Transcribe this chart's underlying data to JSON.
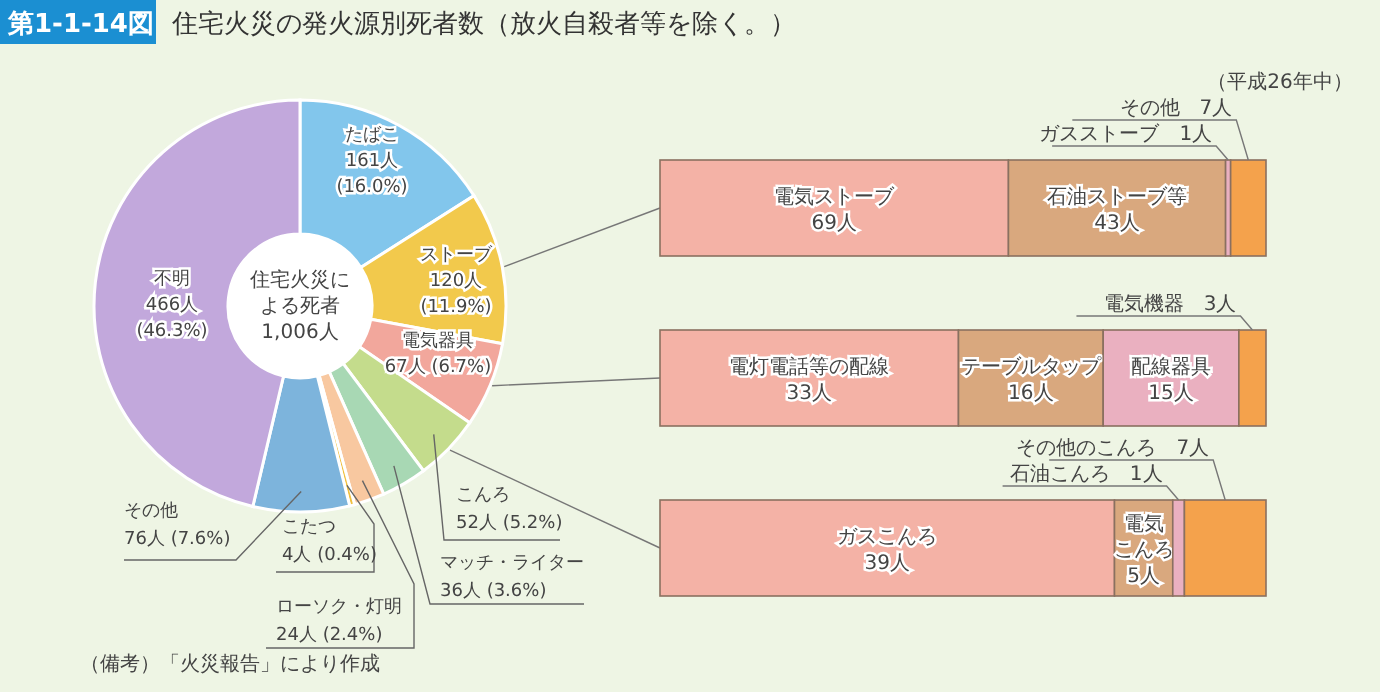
{
  "chart_data": [
    {
      "type": "donut",
      "title": "第1-1-14図 住宅火災の発火源別死者数（放火自殺者等を除く。）",
      "categories": [
        "たばこ",
        "ストーブ",
        "電気器具",
        "こんろ",
        "マッチ・ライター",
        "ローソク・灯明",
        "こたつ",
        "その他",
        "不明"
      ],
      "values": [
        161,
        120,
        67,
        52,
        36,
        24,
        4,
        76,
        466
      ],
      "colors": [
        "#82c6ec",
        "#f2c94c",
        "#f2a79c",
        "#c4dc8c",
        "#a8d8b4",
        "#f8c8a0",
        "#f0c040",
        "#7db4dc",
        "#c2a8dc"
      ],
      "value_labels": [
        "161人 (16.0%)",
        "120人 (11.9%)",
        "67人 (6.7%)",
        "52人 (5.2%)",
        "36人 (3.6%)",
        "24人 (2.4%)",
        "4人 (0.4%)",
        "76人 (7.6%)",
        "466人 (46.3%)"
      ],
      "annotations": [
        "住宅火災による死者 1,006人",
        "（平成26年中）",
        "（備考）「火災報告」により作成"
      ]
    },
    {
      "type": "bar",
      "orientation": "horizontal",
      "stacked": true,
      "categories": [
        null
      ],
      "series": [
        {
          "name": "電気ストーブ",
          "color": "#f4b2a6",
          "values": [
            69
          ],
          "value_labels": [
            "69人"
          ]
        },
        {
          "name": "石油ストーブ等",
          "color": "#d9a87e",
          "values": [
            43
          ],
          "value_labels": [
            "43人"
          ]
        },
        {
          "name": "ガスストーブ",
          "color": "#eab0c0",
          "values": [
            1
          ],
          "value_labels": [
            "1人"
          ]
        },
        {
          "name": "その他",
          "color": "#f4a24c",
          "values": [
            7
          ],
          "value_labels": [
            "7人"
          ]
        }
      ]
    },
    {
      "type": "bar",
      "orientation": "horizontal",
      "stacked": true,
      "categories": [
        null
      ],
      "series": [
        {
          "name": "電灯電話等の配線",
          "color": "#f4b2a6",
          "values": [
            33
          ],
          "value_labels": [
            "33人"
          ]
        },
        {
          "name": "テーブルタップ",
          "color": "#d9a87e",
          "values": [
            16
          ],
          "value_labels": [
            "16人"
          ]
        },
        {
          "name": "配線器具",
          "color": "#eab0c0",
          "values": [
            15
          ],
          "value_labels": [
            "15人"
          ]
        },
        {
          "name": "電気機器",
          "color": "#f4a24c",
          "values": [
            3
          ],
          "value_labels": [
            "3人"
          ]
        }
      ]
    },
    {
      "type": "bar",
      "orientation": "horizontal",
      "stacked": true,
      "categories": [
        null
      ],
      "series": [
        {
          "name": "ガスこんろ",
          "color": "#f4b2a6",
          "values": [
            39
          ],
          "value_labels": [
            "39人"
          ]
        },
        {
          "name": "電気こんろ",
          "color": "#d9a87e",
          "values": [
            5
          ],
          "value_labels": [
            "5人"
          ]
        },
        {
          "name": "石油こんろ",
          "color": "#eab0c0",
          "values": [
            1
          ],
          "value_labels": [
            "1人"
          ]
        },
        {
          "name": "その他のこんろ",
          "color": "#f4a24c",
          "values": [
            7
          ],
          "value_labels": [
            "7人"
          ]
        }
      ]
    }
  ]
}
